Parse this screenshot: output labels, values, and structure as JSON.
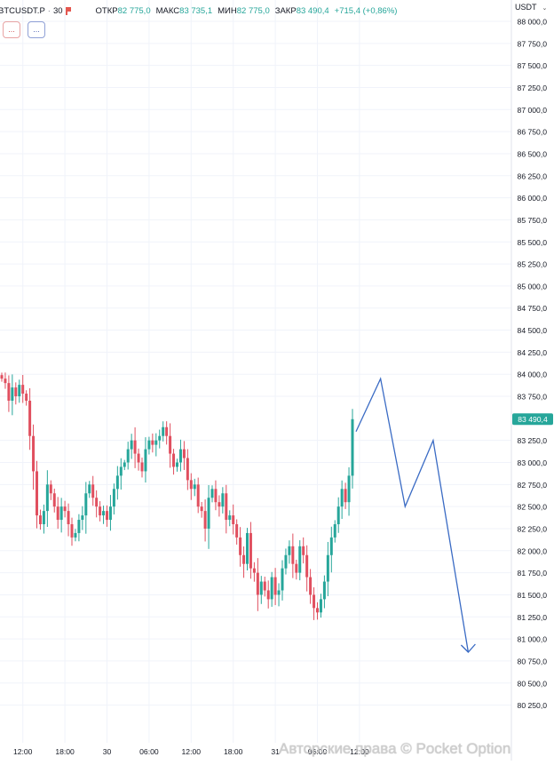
{
  "header": {
    "symbol": "BTCUSDT.P",
    "interval": "30",
    "ohlc": [
      {
        "label": "ОТКР",
        "value": "82 775,0"
      },
      {
        "label": "МАКС",
        "value": "83 735,1"
      },
      {
        "label": "МИН",
        "value": "82 775,0"
      },
      {
        "label": "ЗАКР",
        "value": "83 490,4"
      }
    ],
    "change": "+715,4 (+0,86%)"
  },
  "toolbar": {
    "button_a": "...",
    "button_b": "..."
  },
  "currency": "USDT",
  "colors": {
    "up": "#26a69a",
    "down": "#e04f5f",
    "forecast": "#3a6bc4",
    "last_price_bg": "#26a69a"
  },
  "chart_data": {
    "type": "candlestick",
    "y_ticks": [
      "88 000,0",
      "87 750,0",
      "87 500,0",
      "87 250,0",
      "87 000,0",
      "86 750,0",
      "86 500,0",
      "86 250,0",
      "86 000,0",
      "85 750,0",
      "85 500,0",
      "85 250,0",
      "85 000,0",
      "84 750,0",
      "84 500,0",
      "84 250,0",
      "84 000,0",
      "83 750,0",
      "83 250,0",
      "83 000,0",
      "82 750,0",
      "82 500,0",
      "82 250,0",
      "82 000,0",
      "81 750,0",
      "81 500,0",
      "81 250,0",
      "81 000,0",
      "80 750,0",
      "80 500,0",
      "80 250,0"
    ],
    "y_tick_values": [
      88000,
      87750,
      87500,
      87250,
      87000,
      86750,
      86500,
      86250,
      86000,
      85750,
      85500,
      85250,
      85000,
      84750,
      84500,
      84250,
      84000,
      83750,
      83250,
      83000,
      82750,
      82500,
      82250,
      82000,
      81750,
      81500,
      81250,
      81000,
      80750,
      80500,
      80250
    ],
    "ylim": [
      80250,
      88250
    ],
    "x_ticks": [
      {
        "label": "12:00",
        "i": 6
      },
      {
        "label": "18:00",
        "i": 18
      },
      {
        "label": "30",
        "i": 30
      },
      {
        "label": "06:00",
        "i": 42
      },
      {
        "label": "12:00",
        "i": 54
      },
      {
        "label": "18:00",
        "i": 66
      },
      {
        "label": "31",
        "i": 78
      },
      {
        "label": "06:00",
        "i": 90
      },
      {
        "label": "12:00",
        "i": 102
      }
    ],
    "last_price": "83 490,4",
    "last_price_value": 83490.4,
    "closes": [
      83950,
      83900,
      83700,
      83850,
      83750,
      83880,
      83780,
      83700,
      83300,
      82900,
      82400,
      82300,
      82450,
      82750,
      82650,
      82500,
      82350,
      82500,
      82450,
      82300,
      82150,
      82200,
      82350,
      82400,
      82650,
      82750,
      82600,
      82500,
      82400,
      82450,
      82350,
      82500,
      82700,
      82850,
      82950,
      83000,
      83150,
      83250,
      83100,
      83000,
      82900,
      83150,
      83250,
      83200,
      83250,
      83300,
      83400,
      83300,
      83100,
      82950,
      83000,
      83150,
      83050,
      82800,
      82700,
      82750,
      82500,
      82450,
      82250,
      82600,
      82700,
      82550,
      82500,
      82650,
      82350,
      82400,
      82300,
      82150,
      81950,
      81850,
      82200,
      81800,
      81750,
      81500,
      81650,
      81550,
      81450,
      81700,
      81500,
      81550,
      81800,
      81950,
      82050,
      81850,
      81750,
      82050,
      81950,
      81700,
      81500,
      81350,
      81300,
      81450,
      81650,
      81950,
      82150,
      82300,
      82500,
      82700,
      82550,
      82850,
      83490.4
    ],
    "forecast_path": [
      [
        83350,
        0
      ],
      [
        83950,
        7
      ],
      [
        82500,
        14
      ],
      [
        83250,
        22
      ],
      [
        80850,
        32
      ]
    ]
  }
}
